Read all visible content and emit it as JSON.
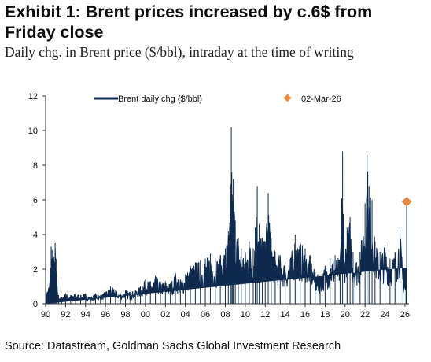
{
  "header": {
    "title": "Exhibit 1: Brent prices increased by c.6$ from Friday close",
    "subtitle": "Daily chg. in Brent price ($/bbl), intraday at the time of writing"
  },
  "footer": {
    "source": "Source: Datastream, Goldman Sachs Global Investment Research"
  },
  "chart_data": {
    "type": "area",
    "ylabel": "",
    "xlabel": "",
    "ylim": [
      0,
      12
    ],
    "xlim": [
      1990,
      2026.4
    ],
    "y_ticks": [
      "0",
      "2",
      "4",
      "6",
      "8",
      "10",
      "12"
    ],
    "x_ticks": [
      "90",
      "92",
      "94",
      "96",
      "98",
      "00",
      "02",
      "04",
      "06",
      "08",
      "10",
      "12",
      "14",
      "16",
      "18",
      "20",
      "22",
      "24",
      "26"
    ],
    "legend_position": "top",
    "series": [
      {
        "name": "Brent daily chg ($/bbl)",
        "color": "#0e2b4f",
        "points": [
          [
            1990.0,
            0.6
          ],
          [
            1990.4,
            1.2
          ],
          [
            1990.55,
            3.3
          ],
          [
            1990.65,
            3.1
          ],
          [
            1990.75,
            3.4
          ],
          [
            1990.85,
            2.4
          ],
          [
            1990.95,
            3.5
          ],
          [
            1991.05,
            2.6
          ],
          [
            1991.15,
            1.0
          ],
          [
            1991.3,
            0.5
          ],
          [
            1991.6,
            0.4
          ],
          [
            1992.0,
            0.6
          ],
          [
            1992.5,
            0.5
          ],
          [
            1993.0,
            0.6
          ],
          [
            1993.5,
            0.5
          ],
          [
            1994.0,
            0.6
          ],
          [
            1994.5,
            0.4
          ],
          [
            1995.0,
            0.6
          ],
          [
            1995.5,
            0.5
          ],
          [
            1996.0,
            0.7
          ],
          [
            1996.5,
            1.0
          ],
          [
            1997.0,
            0.8
          ],
          [
            1997.5,
            0.6
          ],
          [
            1998.0,
            0.8
          ],
          [
            1998.5,
            0.7
          ],
          [
            1999.0,
            0.8
          ],
          [
            1999.5,
            1.0
          ],
          [
            2000.0,
            1.4
          ],
          [
            2000.5,
            1.3
          ],
          [
            2001.0,
            1.6
          ],
          [
            2001.5,
            1.3
          ],
          [
            2002.0,
            1.3
          ],
          [
            2002.5,
            1.2
          ],
          [
            2003.0,
            1.8
          ],
          [
            2003.5,
            1.4
          ],
          [
            2004.0,
            1.7
          ],
          [
            2004.5,
            2.2
          ],
          [
            2005.0,
            2.4
          ],
          [
            2005.5,
            2.5
          ],
          [
            2006.0,
            2.6
          ],
          [
            2006.5,
            2.9
          ],
          [
            2007.0,
            2.6
          ],
          [
            2007.5,
            2.8
          ],
          [
            2008.0,
            3.2
          ],
          [
            2008.3,
            4.2
          ],
          [
            2008.5,
            5.0
          ],
          [
            2008.6,
            10.2
          ],
          [
            2008.7,
            6.3
          ],
          [
            2008.8,
            7.2
          ],
          [
            2009.0,
            4.8
          ],
          [
            2009.3,
            3.8
          ],
          [
            2009.6,
            3.2
          ],
          [
            2010.0,
            3.0
          ],
          [
            2010.4,
            3.6
          ],
          [
            2010.8,
            3.2
          ],
          [
            2011.0,
            4.4
          ],
          [
            2011.2,
            6.8
          ],
          [
            2011.4,
            4.6
          ],
          [
            2011.7,
            3.8
          ],
          [
            2012.0,
            3.6
          ],
          [
            2012.3,
            6.4
          ],
          [
            2012.6,
            3.8
          ],
          [
            2013.0,
            3.0
          ],
          [
            2013.5,
            2.8
          ],
          [
            2014.0,
            2.4
          ],
          [
            2014.5,
            2.6
          ],
          [
            2015.0,
            4.0
          ],
          [
            2015.5,
            3.6
          ],
          [
            2016.0,
            3.2
          ],
          [
            2016.5,
            2.8
          ],
          [
            2017.0,
            1.8
          ],
          [
            2017.5,
            1.6
          ],
          [
            2018.0,
            2.2
          ],
          [
            2018.5,
            2.6
          ],
          [
            2019.0,
            2.8
          ],
          [
            2019.5,
            2.6
          ],
          [
            2019.75,
            8.8
          ],
          [
            2019.9,
            3.0
          ],
          [
            2020.2,
            4.4
          ],
          [
            2020.5,
            5.0
          ],
          [
            2020.8,
            3.0
          ],
          [
            2021.0,
            2.6
          ],
          [
            2021.5,
            3.0
          ],
          [
            2022.0,
            5.8
          ],
          [
            2022.2,
            8.6
          ],
          [
            2022.4,
            6.8
          ],
          [
            2022.7,
            6.0
          ],
          [
            2023.0,
            3.6
          ],
          [
            2023.5,
            3.0
          ],
          [
            2024.0,
            3.4
          ],
          [
            2024.5,
            2.6
          ],
          [
            2025.0,
            3.0
          ],
          [
            2025.5,
            4.4
          ],
          [
            2025.8,
            1.8
          ],
          [
            2026.1,
            1.0
          ],
          [
            2026.17,
            5.9
          ]
        ]
      },
      {
        "name": "02-Mar-26",
        "color": "#f08a3a",
        "points": [
          [
            2026.17,
            5.9
          ]
        ]
      }
    ]
  }
}
